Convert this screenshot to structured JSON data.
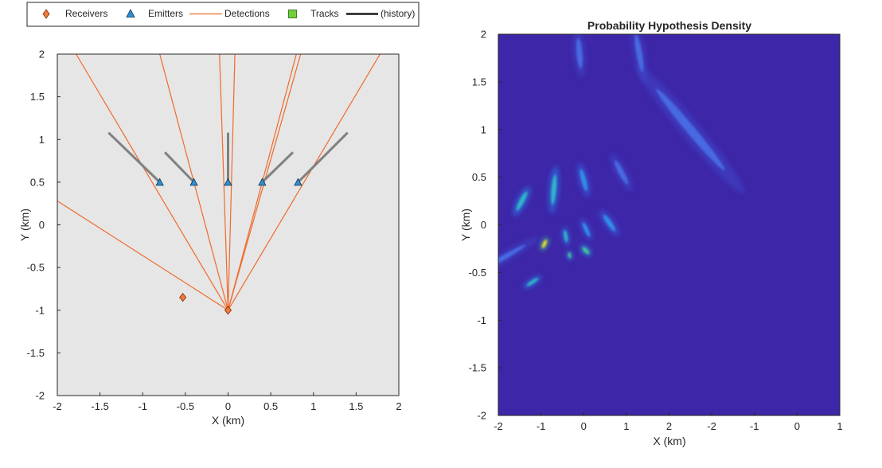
{
  "chart_data": [
    {
      "type": "scatter",
      "panel": "tracking-scene",
      "xlabel": "X (km)",
      "ylabel": "Y (km)",
      "xlim": [
        -2,
        2
      ],
      "ylim": [
        -2,
        2
      ],
      "xticks": [
        "-2",
        "-1.5",
        "-1",
        "-0.5",
        "0",
        "0.5",
        "1",
        "1.5",
        "2"
      ],
      "yticks": [
        "2",
        "1.5",
        "1",
        "0.5",
        "0",
        "-0.5",
        "-1",
        "-1.5",
        "-2"
      ],
      "grid": false,
      "background": "#e6e6e6",
      "legend": {
        "placement": "top",
        "entries": [
          {
            "label": "Receivers",
            "marker": "diamond",
            "color": "#f07a3a"
          },
          {
            "label": "Emitters",
            "marker": "triangle",
            "color": "#2e8fd1"
          },
          {
            "label": "Detections",
            "marker": "line",
            "color": "#f06a2a"
          },
          {
            "label": "Tracks",
            "marker": "square",
            "color": "#6fd13a"
          },
          {
            "label": "(history)",
            "marker": "thick-line",
            "color": "#1a1a1a"
          }
        ]
      },
      "receivers": [
        {
          "x": -0.53,
          "y": -0.85
        },
        {
          "x": 0.0,
          "y": -1.0
        }
      ],
      "emitters": [
        {
          "x": -0.8,
          "y": 0.5
        },
        {
          "x": -0.4,
          "y": 0.5
        },
        {
          "x": 0.0,
          "y": 0.5
        },
        {
          "x": 0.4,
          "y": 0.5
        },
        {
          "x": 0.82,
          "y": 0.5
        }
      ],
      "detections": [
        {
          "x": [
            0.0,
            -1.78
          ],
          "y": [
            -1.0,
            2.0
          ]
        },
        {
          "x": [
            0.0,
            -0.8
          ],
          "y": [
            -1.0,
            2.0
          ]
        },
        {
          "x": [
            0.0,
            -0.1
          ],
          "y": [
            -1.0,
            2.0
          ]
        },
        {
          "x": [
            0.0,
            0.08
          ],
          "y": [
            -1.0,
            2.0
          ]
        },
        {
          "x": [
            0.0,
            0.8
          ],
          "y": [
            -1.0,
            2.0
          ]
        },
        {
          "x": [
            0.0,
            0.85
          ],
          "y": [
            -1.0,
            2.0
          ]
        },
        {
          "x": [
            0.0,
            1.78
          ],
          "y": [
            -1.0,
            2.0
          ]
        },
        {
          "x": [
            0.0,
            -2.0
          ],
          "y": [
            -1.0,
            0.28
          ]
        }
      ],
      "track_history": [
        {
          "x": [
            -0.8,
            -1.4
          ],
          "y": [
            0.5,
            1.08
          ]
        },
        {
          "x": [
            -0.4,
            -0.74
          ],
          "y": [
            0.5,
            0.85
          ]
        },
        {
          "x": [
            0.0,
            0.0
          ],
          "y": [
            0.5,
            1.08
          ]
        },
        {
          "x": [
            0.4,
            0.76
          ],
          "y": [
            0.5,
            0.85
          ]
        },
        {
          "x": [
            0.82,
            1.4
          ],
          "y": [
            0.5,
            1.08
          ]
        }
      ]
    },
    {
      "type": "heatmap",
      "panel": "phd",
      "title": "Probability Hypothesis Density",
      "xlabel": "X (km)",
      "ylabel": "Y (km)",
      "xlim": [
        -2,
        1
      ],
      "ylim": [
        -2,
        2
      ],
      "xticks": [
        "-2",
        "-1",
        "0",
        "1",
        "2",
        "-2",
        "-1",
        "0",
        "1"
      ],
      "yticks": [
        "2",
        "1.5",
        "1",
        "0.5",
        "0",
        "-0.5",
        "-1",
        "-1.5",
        "-2"
      ],
      "background": "#3d26a8",
      "blobs": [
        {
          "x": 0.55,
          "y": 0.25,
          "len": 0.14,
          "wid": 0.025,
          "angle": -62,
          "peak": 0.7
        },
        {
          "x": 1.3,
          "y": 0.37,
          "len": 0.2,
          "wid": 0.025,
          "angle": -85,
          "peak": 0.55
        },
        {
          "x": 2.0,
          "y": 0.47,
          "len": 0.15,
          "wid": 0.025,
          "angle": 75,
          "peak": 0.4
        },
        {
          "x": 2.88,
          "y": 0.55,
          "len": 0.18,
          "wid": 0.028,
          "angle": 62,
          "peak": 0.3
        },
        {
          "x": 4.5,
          "y": 1.0,
          "len": 0.7,
          "wid": 0.045,
          "angle": 50,
          "peak": 0.2
        },
        {
          "x": 1.08,
          "y": -0.2,
          "len": 0.06,
          "wid": 0.018,
          "angle": -65,
          "peak": 1.0
        },
        {
          "x": 1.58,
          "y": -0.12,
          "len": 0.08,
          "wid": 0.018,
          "angle": 80,
          "peak": 0.6
        },
        {
          "x": 2.06,
          "y": -0.05,
          "len": 0.1,
          "wid": 0.02,
          "angle": 65,
          "peak": 0.5
        },
        {
          "x": 2.6,
          "y": 0.02,
          "len": 0.13,
          "wid": 0.025,
          "angle": 55,
          "peak": 0.4
        },
        {
          "x": 1.67,
          "y": -0.32,
          "len": 0.04,
          "wid": 0.015,
          "angle": 80,
          "peak": 0.8
        },
        {
          "x": 2.05,
          "y": -0.27,
          "len": 0.06,
          "wid": 0.02,
          "angle": 45,
          "peak": 0.85
        },
        {
          "x": 0.8,
          "y": -0.6,
          "len": 0.09,
          "wid": 0.018,
          "angle": -33,
          "peak": 0.65
        },
        {
          "x": 0.1,
          "y": -0.35,
          "len": 0.35,
          "wid": 0.025,
          "angle": -30,
          "peak": 0.25
        },
        {
          "x": -1.2,
          "y": 0.05,
          "len": 0.5,
          "wid": 0.03,
          "angle": -30,
          "peak": 0.12
        },
        {
          "x": 3.3,
          "y": 1.8,
          "len": 0.25,
          "wid": 0.03,
          "angle": 80,
          "peak": 0.12
        },
        {
          "x": 1.9,
          "y": 1.8,
          "len": 0.2,
          "wid": 0.03,
          "angle": 85,
          "peak": 0.08
        }
      ]
    }
  ]
}
